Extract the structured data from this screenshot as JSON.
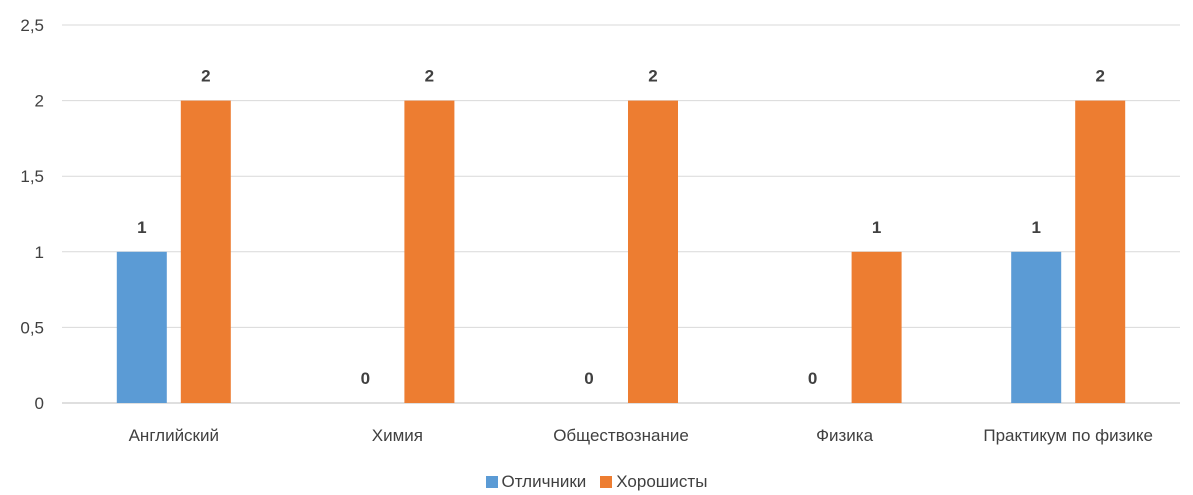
{
  "chart_data": {
    "type": "bar",
    "title": "",
    "xlabel": "",
    "ylabel": "",
    "categories": [
      "Английский",
      "Химия",
      "Обществознание",
      "Физика",
      "Практикум по физике"
    ],
    "series": [
      {
        "name": "Отличники",
        "values": [
          1,
          0,
          0,
          0,
          1
        ],
        "color": "#5B9BD5"
      },
      {
        "name": "Хорошисты",
        "values": [
          2,
          2,
          2,
          1,
          2
        ],
        "color": "#ED7D31"
      }
    ],
    "ylim": [
      0,
      2.5
    ],
    "yticks": [
      "0",
      "0,5",
      "1",
      "1,5",
      "2",
      "2,5"
    ],
    "grid": true,
    "legend_position": "bottom"
  }
}
